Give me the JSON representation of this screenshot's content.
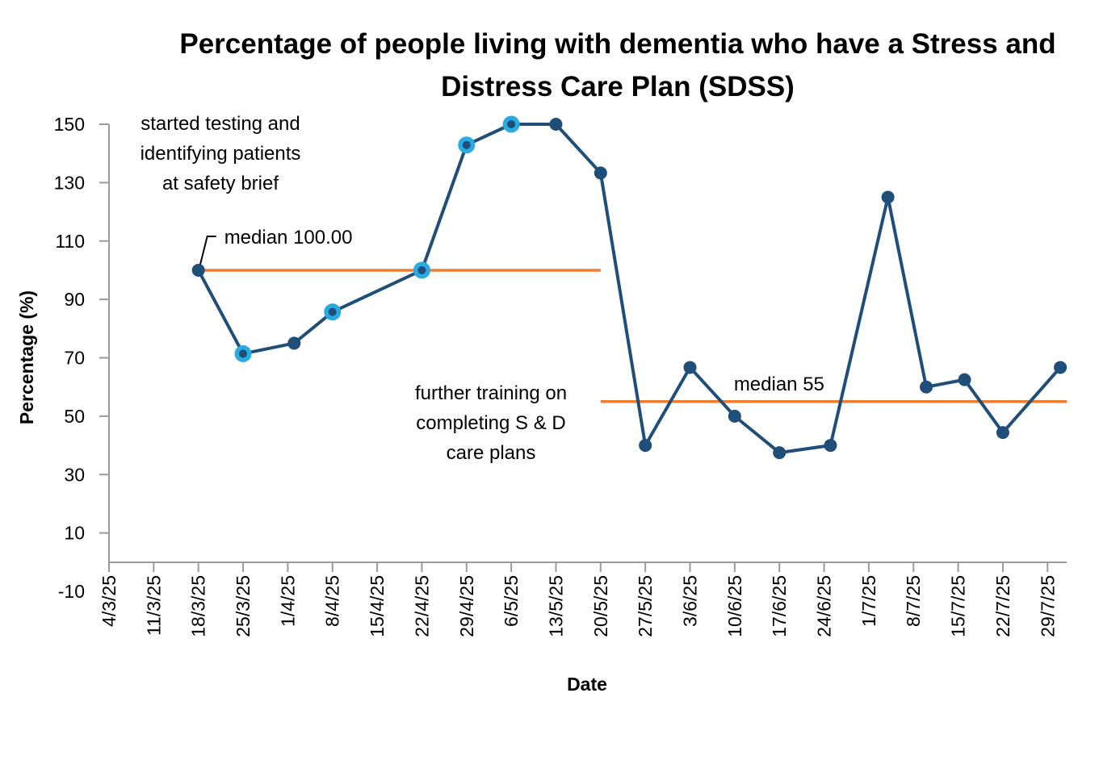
{
  "chart_data": {
    "type": "line",
    "title": "Percentage of people living with dementia who have a Stress and Distress Care Plan (SDSS)",
    "xlabel": "Date",
    "ylabel": "Percentage (%)",
    "ylim": [
      -10,
      150
    ],
    "y_ticks": [
      150,
      130,
      110,
      90,
      70,
      50,
      30,
      10,
      -10
    ],
    "x_ticks": [
      "4/3/25",
      "11/3/25",
      "18/3/25",
      "25/3/25",
      "1/4/25",
      "8/4/25",
      "15/4/25",
      "22/4/25",
      "29/4/25",
      "6/5/25",
      "13/5/25",
      "20/5/25",
      "27/5/25",
      "3/6/25",
      "10/6/25",
      "17/6/25",
      "24/6/25",
      "1/7/25",
      "8/7/25",
      "15/7/25",
      "22/7/25",
      "29/7/25"
    ],
    "x_range": [
      "2025-03-04",
      "2025-08-01"
    ],
    "grid": false,
    "legend": "none",
    "series": [
      {
        "color": "#1f4e79",
        "points": [
          {
            "x": "2025-03-18",
            "y": 100,
            "highlight": false
          },
          {
            "x": "2025-03-25",
            "y": 71.4,
            "highlight": true
          },
          {
            "x": "2025-04-02",
            "y": 75,
            "highlight": false
          },
          {
            "x": "2025-04-08",
            "y": 85.7,
            "highlight": true
          },
          {
            "x": "2025-04-22",
            "y": 100,
            "highlight": true
          },
          {
            "x": "2025-04-29",
            "y": 142.9,
            "highlight": true
          },
          {
            "x": "2025-05-06",
            "y": 150,
            "highlight": true
          },
          {
            "x": "2025-05-13",
            "y": 150,
            "highlight": false
          },
          {
            "x": "2025-05-20",
            "y": 133.3,
            "highlight": false
          },
          {
            "x": "2025-05-27",
            "y": 40,
            "highlight": false
          },
          {
            "x": "2025-06-03",
            "y": 66.7,
            "highlight": false
          },
          {
            "x": "2025-06-10",
            "y": 50,
            "highlight": false
          },
          {
            "x": "2025-06-17",
            "y": 37.5,
            "highlight": false
          },
          {
            "x": "2025-06-25",
            "y": 40,
            "highlight": false
          },
          {
            "x": "2025-07-04",
            "y": 125,
            "highlight": false
          },
          {
            "x": "2025-07-10",
            "y": 60,
            "highlight": false
          },
          {
            "x": "2025-07-16",
            "y": 62.5,
            "highlight": false
          },
          {
            "x": "2025-07-22",
            "y": 44.4,
            "highlight": false
          },
          {
            "x": "2025-07-31",
            "y": 66.7,
            "highlight": false
          }
        ]
      }
    ],
    "median_lines": [
      {
        "label": "median 100.00",
        "y": 100,
        "x_start": "2025-03-18",
        "x_end": "2025-05-20",
        "color": "#ed7d31"
      },
      {
        "label": "median 55",
        "y": 55,
        "x_start": "2025-05-20",
        "x_end": "2025-08-01",
        "color": "#ed7d31"
      }
    ],
    "highlight_color": "#29aae1",
    "annotations": [
      {
        "lines": [
          "started testing and",
          "identifying patients",
          "at safety brief"
        ]
      },
      {
        "lines": [
          "further training on",
          "completing S & D",
          "care plans"
        ]
      }
    ]
  }
}
